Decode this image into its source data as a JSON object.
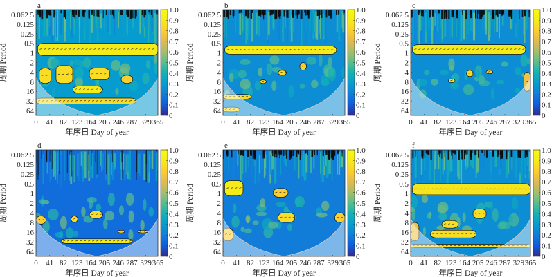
{
  "figure": {
    "type": "wavelet-coherence-grid",
    "panel_count": 6
  },
  "chart_data": [
    {
      "type": "heatmap",
      "panel_label": "a",
      "title": "",
      "xlabel": "年序日 Day of year",
      "ylabel": "周期 Period",
      "x_ticks": [
        "0",
        "41",
        "82",
        "123",
        "164",
        "205",
        "246",
        "287",
        "329",
        "365"
      ],
      "x_tick_values": [
        0,
        41,
        82,
        123,
        164,
        205,
        246,
        287,
        329,
        365
      ],
      "xlim": [
        0,
        365
      ],
      "y_ticks": [
        "0.062 5",
        "0.125",
        "0.25",
        "0.5",
        "1",
        "2",
        "4",
        "8",
        "16",
        "32",
        "64"
      ],
      "y_tick_values": [
        0.0625,
        0.125,
        0.25,
        0.5,
        1,
        2,
        4,
        8,
        16,
        32,
        64
      ],
      "ylim_log2": [
        -4.5,
        6.5
      ],
      "y_axis_reversed": true,
      "colorbar": {
        "ticks": [
          "0",
          "0.1",
          "0.2",
          "0.3",
          "0.4",
          "0.5",
          "0.6",
          "0.7",
          "0.8",
          "0.9",
          "1.0"
        ],
        "range": [
          0,
          1
        ]
      },
      "significant_bands": [
        {
          "period_from": 0.5,
          "period_to": 1.2,
          "day_from": 5,
          "day_to": 365,
          "coherence": 0.9
        },
        {
          "period_from": 3,
          "period_to": 9,
          "day_from": 10,
          "day_to": 45,
          "coherence": 0.85
        },
        {
          "period_from": 2.5,
          "period_to": 9,
          "day_from": 60,
          "day_to": 110,
          "coherence": 0.85
        },
        {
          "period_from": 3,
          "period_to": 7,
          "day_from": 160,
          "day_to": 220,
          "coherence": 0.85
        },
        {
          "period_from": 5,
          "period_to": 9,
          "day_from": 255,
          "day_to": 290,
          "coherence": 0.8
        },
        {
          "period_from": 11,
          "period_to": 18,
          "day_from": 110,
          "day_to": 200,
          "coherence": 0.9
        },
        {
          "period_from": 26,
          "period_to": 40,
          "day_from": 0,
          "day_to": 300,
          "coherence": 0.85
        }
      ],
      "background_level": 0.3
    },
    {
      "type": "heatmap",
      "panel_label": "b",
      "title": "",
      "xlabel": "年序日 Day of year",
      "ylabel": "周期 Period",
      "x_ticks": [
        "0",
        "41",
        "82",
        "123",
        "164",
        "205",
        "246",
        "287",
        "329",
        "365"
      ],
      "x_tick_values": [
        0,
        41,
        82,
        123,
        164,
        205,
        246,
        287,
        329,
        365
      ],
      "xlim": [
        0,
        365
      ],
      "y_ticks": [
        "0.062 5",
        "0.125",
        "0.25",
        "0.5",
        "1",
        "2",
        "4",
        "8",
        "16",
        "32",
        "64"
      ],
      "y_tick_values": [
        0.0625,
        0.125,
        0.25,
        0.5,
        1,
        2,
        4,
        8,
        16,
        32,
        64
      ],
      "ylim_log2": [
        -4.5,
        6.5
      ],
      "y_axis_reversed": true,
      "colorbar": {
        "ticks": [
          "0",
          "0.1",
          "0.2",
          "0.3",
          "0.4",
          "0.5",
          "0.6",
          "0.7",
          "0.8",
          "0.9",
          "1.0"
        ],
        "range": [
          0,
          1
        ]
      },
      "significant_bands": [
        {
          "period_from": 0.6,
          "period_to": 1.1,
          "day_from": 5,
          "day_to": 340,
          "coherence": 0.9
        },
        {
          "period_from": 3.5,
          "period_to": 5,
          "day_from": 165,
          "day_to": 190,
          "coherence": 0.85
        },
        {
          "period_from": 2,
          "period_to": 3.5,
          "day_from": 230,
          "day_to": 250,
          "coherence": 0.8
        },
        {
          "period_from": 7,
          "period_to": 9,
          "day_from": 110,
          "day_to": 130,
          "coherence": 0.85
        },
        {
          "period_from": 20,
          "period_to": 28,
          "day_from": 0,
          "day_to": 85,
          "coherence": 0.85
        },
        {
          "period_from": 50,
          "period_to": 70,
          "day_from": 0,
          "day_to": 50,
          "coherence": 0.85
        }
      ],
      "background_level": 0.25
    },
    {
      "type": "heatmap",
      "panel_label": "c",
      "title": "",
      "xlabel": "年序日 Day of year",
      "ylabel": "周期 Period",
      "x_ticks": [
        "0",
        "41",
        "82",
        "123",
        "164",
        "205",
        "246",
        "287",
        "329",
        "365"
      ],
      "x_tick_values": [
        0,
        41,
        82,
        123,
        164,
        205,
        246,
        287,
        329,
        365
      ],
      "xlim": [
        0,
        365
      ],
      "y_ticks": [
        "0.062 5",
        "0.125",
        "0.25",
        "0.5",
        "1",
        "2",
        "4",
        "8",
        "16",
        "32",
        "64"
      ],
      "y_tick_values": [
        0.0625,
        0.125,
        0.25,
        0.5,
        1,
        2,
        4,
        8,
        16,
        32,
        64
      ],
      "ylim_log2": [
        -4.5,
        6.5
      ],
      "y_axis_reversed": true,
      "colorbar": {
        "ticks": [
          "0",
          "0.1",
          "0.2",
          "0.3",
          "0.4",
          "0.5",
          "0.6",
          "0.7",
          "0.8",
          "0.9",
          "1.0"
        ],
        "range": [
          0,
          1
        ]
      },
      "significant_bands": [
        {
          "period_from": 0.55,
          "period_to": 1.1,
          "day_from": 5,
          "day_to": 350,
          "coherence": 0.9
        },
        {
          "period_from": 3.5,
          "period_to": 5.5,
          "day_from": 170,
          "day_to": 190,
          "coherence": 0.85
        },
        {
          "period_from": 6.5,
          "period_to": 8.5,
          "day_from": 115,
          "day_to": 135,
          "coherence": 0.85
        },
        {
          "period_from": 3.5,
          "period_to": 4.5,
          "day_from": 230,
          "day_to": 250,
          "coherence": 0.8
        },
        {
          "period_from": 4,
          "period_to": 16,
          "day_from": 345,
          "day_to": 365,
          "coherence": 0.75
        }
      ],
      "background_level": 0.25
    },
    {
      "type": "heatmap",
      "panel_label": "d",
      "title": "",
      "xlabel": "年序日 Day of year",
      "ylabel": "周期 Period",
      "x_ticks": [
        "0",
        "41",
        "82",
        "123",
        "164",
        "205",
        "246",
        "287",
        "329",
        "365"
      ],
      "x_tick_values": [
        0,
        41,
        82,
        123,
        164,
        205,
        246,
        287,
        329,
        365
      ],
      "xlim": [
        0,
        365
      ],
      "y_ticks": [
        "0.062 5",
        "0.125",
        "0.25",
        "0.5",
        "1",
        "2",
        "4",
        "8",
        "16",
        "32",
        "64"
      ],
      "y_tick_values": [
        0.0625,
        0.125,
        0.25,
        0.5,
        1,
        2,
        4,
        8,
        16,
        32,
        64
      ],
      "ylim_log2": [
        -4.5,
        6.5
      ],
      "y_axis_reversed": true,
      "colorbar": {
        "ticks": [
          "0",
          "0.1",
          "0.2",
          "0.3",
          "0.4",
          "0.5",
          "0.6",
          "0.7",
          "0.8",
          "0.9",
          "1.0"
        ],
        "range": [
          0,
          1
        ]
      },
      "significant_bands": [
        {
          "period_from": 26,
          "period_to": 36,
          "day_from": 75,
          "day_to": 290,
          "coherence": 0.9
        },
        {
          "period_from": 3.5,
          "period_to": 6,
          "day_from": 160,
          "day_to": 200,
          "coherence": 0.85
        },
        {
          "period_from": 5,
          "period_to": 8,
          "day_from": 105,
          "day_to": 125,
          "coherence": 0.85
        },
        {
          "period_from": 5,
          "period_to": 9,
          "day_from": 0,
          "day_to": 30,
          "coherence": 0.8
        },
        {
          "period_from": 14,
          "period_to": 17,
          "day_from": 245,
          "day_to": 265,
          "coherence": 0.8
        },
        {
          "period_from": 14,
          "period_to": 17,
          "day_from": 305,
          "day_to": 335,
          "coherence": 0.8
        }
      ],
      "background_level": 0.15
    },
    {
      "type": "heatmap",
      "panel_label": "e",
      "title": "",
      "xlabel": "年序日 Day of year",
      "ylabel": "周期 Period",
      "x_ticks": [
        "0",
        "41",
        "82",
        "123",
        "164",
        "205",
        "246",
        "287",
        "329",
        "365"
      ],
      "x_tick_values": [
        0,
        41,
        82,
        123,
        164,
        205,
        246,
        287,
        329,
        365
      ],
      "xlim": [
        0,
        365
      ],
      "y_ticks": [
        "0.062 5",
        "0.125",
        "0.25",
        "0.5",
        "1",
        "2",
        "4",
        "8",
        "16",
        "32",
        "64"
      ],
      "y_tick_values": [
        0.0625,
        0.125,
        0.25,
        0.5,
        1,
        2,
        4,
        8,
        16,
        32,
        64
      ],
      "ylim_log2": [
        -4.5,
        6.5
      ],
      "y_axis_reversed": true,
      "colorbar": {
        "ticks": [
          "0",
          "0.1",
          "0.2",
          "0.3",
          "0.4",
          "0.5",
          "0.6",
          "0.7",
          "0.8",
          "0.9",
          "1.0"
        ],
        "range": [
          0,
          1
        ]
      },
      "significant_bands": [
        {
          "period_from": 0.4,
          "period_to": 1.2,
          "day_from": 5,
          "day_to": 60,
          "coherence": 0.9
        },
        {
          "period_from": 4,
          "period_to": 8,
          "day_from": 165,
          "day_to": 215,
          "coherence": 0.85
        },
        {
          "period_from": 4,
          "period_to": 8,
          "day_from": 335,
          "day_to": 365,
          "coherence": 0.8
        },
        {
          "period_from": 12,
          "period_to": 30,
          "day_from": 0,
          "day_to": 30,
          "coherence": 0.8
        },
        {
          "period_from": 0.7,
          "period_to": 1.3,
          "day_from": 150,
          "day_to": 195,
          "coherence": 0.8
        }
      ],
      "background_level": 0.2
    },
    {
      "type": "heatmap",
      "panel_label": "f",
      "title": "",
      "xlabel": "年序日 Day of year",
      "ylabel": "周期 Period",
      "x_ticks": [
        "0",
        "41",
        "82",
        "123",
        "164",
        "205",
        "246",
        "287",
        "329",
        "365"
      ],
      "x_tick_values": [
        0,
        41,
        82,
        123,
        164,
        205,
        246,
        287,
        329,
        365
      ],
      "xlim": [
        0,
        365
      ],
      "y_ticks": [
        "0.062 5",
        "0.125",
        "0.25",
        "0.5",
        "1",
        "2",
        "4",
        "8",
        "16",
        "32",
        "64"
      ],
      "y_tick_values": [
        0.0625,
        0.125,
        0.25,
        0.5,
        1,
        2,
        4,
        8,
        16,
        32,
        64
      ],
      "ylim_log2": [
        -4.5,
        6.5
      ],
      "y_axis_reversed": true,
      "colorbar": {
        "ticks": [
          "0",
          "0.1",
          "0.2",
          "0.3",
          "0.4",
          "0.5",
          "0.6",
          "0.7",
          "0.8",
          "0.9",
          "1.0"
        ],
        "range": [
          0,
          1
        ]
      },
      "significant_bands": [
        {
          "period_from": 0.5,
          "period_to": 1.1,
          "day_from": 5,
          "day_to": 365,
          "coherence": 0.88
        },
        {
          "period_from": 14,
          "period_to": 24,
          "day_from": 60,
          "day_to": 200,
          "coherence": 0.85
        },
        {
          "period_from": 7,
          "period_to": 12,
          "day_from": 95,
          "day_to": 145,
          "coherence": 0.85
        },
        {
          "period_from": 3,
          "period_to": 6,
          "day_from": 190,
          "day_to": 230,
          "coherence": 0.85
        },
        {
          "period_from": 38,
          "period_to": 48,
          "day_from": 0,
          "day_to": 365,
          "coherence": 0.85
        },
        {
          "period_from": 8,
          "period_to": 30,
          "day_from": 0,
          "day_to": 25,
          "coherence": 0.75
        }
      ],
      "background_level": 0.25
    }
  ]
}
